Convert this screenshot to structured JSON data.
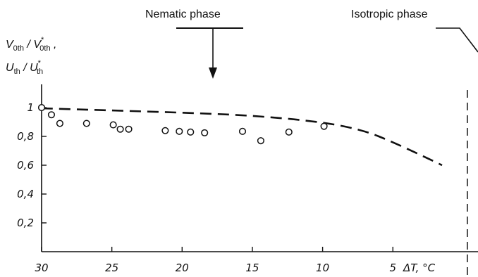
{
  "chart_data": {
    "type": "scatter",
    "title": "",
    "phase_labels": {
      "left": "Nematic phase",
      "right": "Isotropic phase"
    },
    "ylabel_line1": {
      "num": "V",
      "num_sub": "0th",
      "sep": " / ",
      "den": "V",
      "den_sup": "*",
      "den_sub": "0th",
      "trail": " ,"
    },
    "ylabel_line2": {
      "num": "U",
      "num_sub": "th",
      "sep": " / ",
      "den": "U",
      "den_sup": "*",
      "den_sub": "th"
    },
    "xlabel": "ΔT, °C",
    "x_ticks": [
      {
        "value": 30,
        "label": "30"
      },
      {
        "value": 25,
        "label": "25"
      },
      {
        "value": 20,
        "label": "20"
      },
      {
        "value": 15,
        "label": "15"
      },
      {
        "value": 10,
        "label": "10"
      },
      {
        "value": 5,
        "label": "5"
      }
    ],
    "y_ticks": [
      {
        "value": 1.0,
        "label": "1"
      },
      {
        "value": 0.8,
        "label": "0,8"
      },
      {
        "value": 0.6,
        "label": "0,6"
      },
      {
        "value": 0.4,
        "label": "0,4"
      },
      {
        "value": 0.2,
        "label": "0,2"
      }
    ],
    "xlim": [
      30,
      0
    ],
    "ylim": [
      0,
      1.1
    ],
    "transition_x": -0.3,
    "series": [
      {
        "kind": "points",
        "marker": "open-circle",
        "points": [
          {
            "x": 30.0,
            "y": 1.0
          },
          {
            "x": 29.3,
            "y": 0.95
          },
          {
            "x": 28.7,
            "y": 0.89
          },
          {
            "x": 26.8,
            "y": 0.89
          },
          {
            "x": 24.9,
            "y": 0.88
          },
          {
            "x": 24.4,
            "y": 0.85
          },
          {
            "x": 23.8,
            "y": 0.85
          },
          {
            "x": 21.2,
            "y": 0.84
          },
          {
            "x": 20.2,
            "y": 0.835
          },
          {
            "x": 19.4,
            "y": 0.83
          },
          {
            "x": 18.4,
            "y": 0.825
          },
          {
            "x": 15.7,
            "y": 0.835
          },
          {
            "x": 14.4,
            "y": 0.77
          },
          {
            "x": 12.4,
            "y": 0.83
          },
          {
            "x": 9.9,
            "y": 0.87
          }
        ]
      },
      {
        "kind": "dashed-curve",
        "points": [
          {
            "x": 30.0,
            "y": 0.995
          },
          {
            "x": 25.0,
            "y": 0.98
          },
          {
            "x": 20.0,
            "y": 0.965
          },
          {
            "x": 15.0,
            "y": 0.945
          },
          {
            "x": 10.0,
            "y": 0.9
          },
          {
            "x": 7.0,
            "y": 0.84
          },
          {
            "x": 5.0,
            "y": 0.76
          },
          {
            "x": 3.0,
            "y": 0.67
          },
          {
            "x": 1.5,
            "y": 0.6
          }
        ]
      }
    ],
    "grid": false,
    "legend": "none"
  }
}
